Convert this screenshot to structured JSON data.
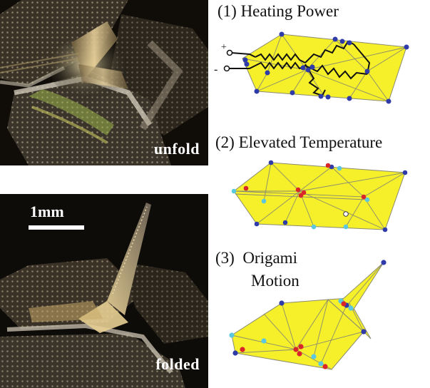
{
  "photos": {
    "top": {
      "label": "unfold"
    },
    "bottom": {
      "label": "folded",
      "scale_bar": "1mm"
    }
  },
  "steps": [
    {
      "label": "(1) Heating Power"
    },
    {
      "label": "(2) Elevated Temperature"
    },
    {
      "label": "(3)  Origami",
      "label2": "Motion"
    }
  ],
  "circuit": {
    "plus": "+",
    "minus": "-"
  },
  "colors": {
    "face": "#f5f02a",
    "edge": "#8a8a70",
    "node_blue": "#2e3ba8",
    "node_red": "#d8262a",
    "node_cyan": "#5cc8e0",
    "heater": "#111111"
  }
}
